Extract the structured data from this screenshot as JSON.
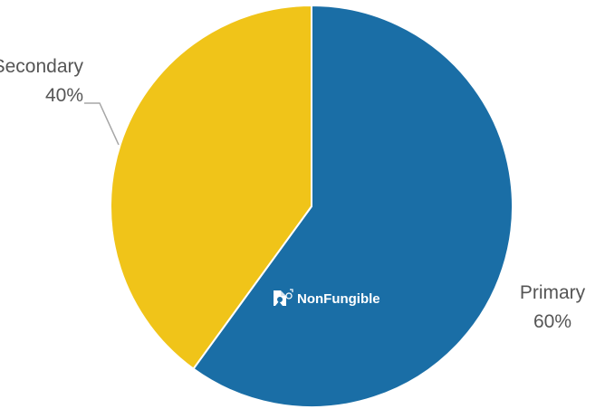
{
  "chart_data": {
    "type": "pie",
    "start_angle_deg": 0,
    "direction": "clockwise",
    "slices": [
      {
        "name": "Primary",
        "value": 60,
        "label": "60%",
        "color": "#1a6ea6"
      },
      {
        "name": "Secondary",
        "value": 40,
        "label": "40%",
        "color": "#f0c419"
      }
    ],
    "legend": "none",
    "leader_line_color": "#a6a6a6",
    "slice_border_color": "#ffffff"
  },
  "watermark": {
    "text": "NonFungible",
    "icon": "nonfungible-logo-icon"
  }
}
